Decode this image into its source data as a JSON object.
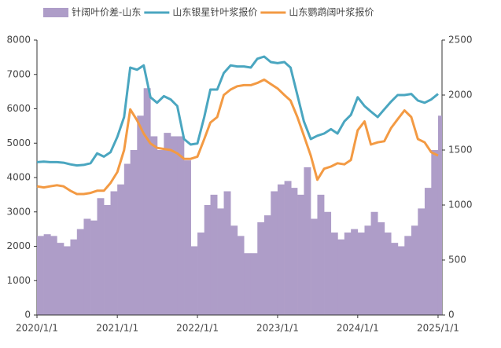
{
  "chart_data": {
    "type": "bar_line",
    "x": [
      "2020/1/1",
      "2020/2/1",
      "2020/3/1",
      "2020/4/1",
      "2020/5/1",
      "2020/6/1",
      "2020/7/1",
      "2020/8/1",
      "2020/9/1",
      "2020/10/1",
      "2020/11/1",
      "2020/12/1",
      "2021/1/1",
      "2021/2/1",
      "2021/3/1",
      "2021/4/1",
      "2021/5/1",
      "2021/6/1",
      "2021/7/1",
      "2021/8/1",
      "2021/9/1",
      "2021/10/1",
      "2021/11/1",
      "2021/12/1",
      "2022/1/1",
      "2022/2/1",
      "2022/3/1",
      "2022/4/1",
      "2022/5/1",
      "2022/6/1",
      "2022/7/1",
      "2022/8/1",
      "2022/9/1",
      "2022/10/1",
      "2022/11/1",
      "2022/12/1",
      "2023/1/1",
      "2023/2/1",
      "2023/3/1",
      "2023/4/1",
      "2023/5/1",
      "2023/6/1",
      "2023/7/1",
      "2023/8/1",
      "2023/9/1",
      "2023/10/1",
      "2023/11/1",
      "2023/12/1",
      "2024/1/1",
      "2024/2/1",
      "2024/3/1",
      "2024/4/1",
      "2024/5/1",
      "2024/6/1",
      "2024/7/1",
      "2024/8/1",
      "2024/9/1",
      "2024/10/1",
      "2024/11/1",
      "2024/12/1",
      "2025/1/1"
    ],
    "series": [
      {
        "name": "针阔叶价差-山东",
        "color": "#ae9dc8",
        "kind": "bar",
        "axis": "y",
        "values": [
          2300,
          2350,
          2300,
          2100,
          2000,
          2200,
          2500,
          2800,
          2750,
          3400,
          3200,
          3600,
          3800,
          4400,
          4800,
          5800,
          6600,
          5200,
          4800,
          5300,
          5200,
          5200,
          4500,
          2000,
          2400,
          3200,
          3500,
          3100,
          3600,
          2600,
          2300,
          1800,
          1800,
          2700,
          2900,
          3600,
          3800,
          3900,
          3700,
          3500,
          4300,
          2800,
          3500,
          3000,
          2400,
          2200,
          2400,
          2500,
          2400,
          2600,
          3000,
          2700,
          2400,
          2100,
          2000,
          2300,
          2600,
          3100,
          3700,
          4800,
          5800
        ]
      },
      {
        "name": "山东银星针叶浆报价",
        "color": "#4aa6c0",
        "kind": "line",
        "axis": "y2",
        "values": [
          1390,
          1395,
          1390,
          1390,
          1385,
          1370,
          1360,
          1365,
          1380,
          1470,
          1440,
          1480,
          1620,
          1800,
          2250,
          2230,
          2270,
          1980,
          1930,
          1990,
          1960,
          1900,
          1600,
          1550,
          1560,
          1800,
          2050,
          2050,
          2200,
          2270,
          2260,
          2260,
          2250,
          2330,
          2350,
          2300,
          2290,
          2300,
          2250,
          2000,
          1760,
          1600,
          1630,
          1650,
          1690,
          1650,
          1760,
          1820,
          1980,
          1900,
          1850,
          1800,
          1870,
          1940,
          2000,
          2000,
          2010,
          1950,
          1930,
          1960,
          2010
        ]
      },
      {
        "name": "山东鹦鹉阔叶浆报价",
        "color": "#f39a43",
        "kind": "line",
        "axis": "y2",
        "values": [
          1170,
          1160,
          1170,
          1180,
          1170,
          1130,
          1100,
          1100,
          1110,
          1130,
          1130,
          1200,
          1300,
          1500,
          1870,
          1770,
          1650,
          1560,
          1520,
          1510,
          1500,
          1470,
          1420,
          1420,
          1440,
          1600,
          1750,
          1800,
          2000,
          2050,
          2080,
          2090,
          2090,
          2110,
          2140,
          2100,
          2060,
          2000,
          1950,
          1800,
          1630,
          1450,
          1230,
          1330,
          1350,
          1380,
          1370,
          1410,
          1680,
          1760,
          1550,
          1570,
          1580,
          1700,
          1780,
          1860,
          1800,
          1600,
          1570,
          1480,
          1450
        ]
      }
    ],
    "xlim": [
      "2020/1/1",
      "2025/1/19"
    ],
    "xticks": [
      "2020/1/1",
      "2021/1/1",
      "2022/1/1",
      "2023/1/1",
      "2024/1/1",
      "2025/1/1"
    ],
    "ylim": [
      0,
      8000
    ],
    "yticks": [
      0,
      1000,
      2000,
      3000,
      4000,
      5000,
      6000,
      7000,
      8000
    ],
    "y2lim": [
      0,
      2500
    ],
    "y2ticks": [
      0,
      500,
      1000,
      1500,
      2000,
      2500
    ],
    "legend": "top"
  }
}
